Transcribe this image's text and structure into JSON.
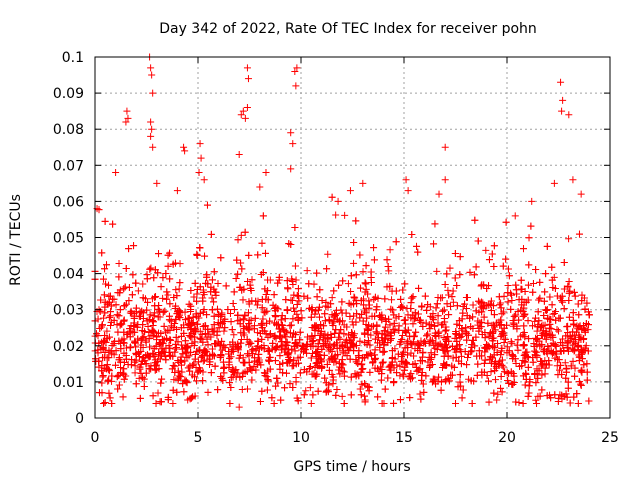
{
  "chart_data": {
    "type": "scatter",
    "title": "Day 342 of 2022, Rate Of TEC Index for receiver pohn",
    "xlabel": "GPS time / hours",
    "ylabel": "ROTI / TECUs",
    "xlim": [
      0,
      25
    ],
    "ylim": [
      0,
      0.1
    ],
    "x_ticks": [
      "0",
      "5",
      "10",
      "15",
      "20",
      "25"
    ],
    "y_ticks": [
      "0",
      "0.01",
      "0.02",
      "0.03",
      "0.04",
      "0.05",
      "0.06",
      "0.07",
      "0.08",
      "0.09",
      "0.1"
    ],
    "x_tick_values": [
      0,
      5,
      10,
      15,
      20,
      25
    ],
    "y_tick_values": [
      0,
      0.01,
      0.02,
      0.03,
      0.04,
      0.05,
      0.06,
      0.07,
      0.08,
      0.09,
      0.1
    ],
    "grid": true,
    "marker": "+",
    "color": "#ff0000",
    "series": [
      {
        "x_range": [
          0,
          24
        ],
        "y_typical_range": [
          0.005,
          0.04
        ],
        "y_median": 0.02,
        "outliers": [
          [
            2.65,
            0.1
          ],
          [
            2.7,
            0.097
          ],
          [
            2.75,
            0.095
          ],
          [
            2.8,
            0.09
          ],
          [
            2.7,
            0.082
          ],
          [
            2.75,
            0.08
          ],
          [
            2.7,
            0.078
          ],
          [
            2.8,
            0.075
          ],
          [
            1.55,
            0.085
          ],
          [
            1.6,
            0.083
          ],
          [
            1.5,
            0.082
          ],
          [
            4.3,
            0.075
          ],
          [
            4.35,
            0.074
          ],
          [
            5.1,
            0.076
          ],
          [
            5.15,
            0.072
          ],
          [
            5.05,
            0.068
          ],
          [
            7.1,
            0.084
          ],
          [
            7.2,
            0.085
          ],
          [
            7.4,
            0.086
          ],
          [
            7.3,
            0.083
          ],
          [
            7.0,
            0.073
          ],
          [
            7.4,
            0.097
          ],
          [
            7.45,
            0.094
          ],
          [
            9.7,
            0.096
          ],
          [
            9.8,
            0.097
          ],
          [
            9.75,
            0.092
          ],
          [
            9.5,
            0.079
          ],
          [
            9.6,
            0.076
          ],
          [
            9.5,
            0.069
          ],
          [
            17.0,
            0.075
          ],
          [
            17.0,
            0.066
          ],
          [
            22.6,
            0.093
          ],
          [
            22.7,
            0.088
          ],
          [
            22.65,
            0.085
          ],
          [
            23.0,
            0.084
          ],
          [
            0.1,
            0.058
          ],
          [
            1.0,
            0.068
          ],
          [
            3.0,
            0.065
          ],
          [
            4.0,
            0.063
          ],
          [
            5.3,
            0.066
          ],
          [
            8.0,
            0.064
          ],
          [
            8.3,
            0.068
          ],
          [
            11.8,
            0.06
          ],
          [
            12.4,
            0.063
          ],
          [
            13.0,
            0.065
          ],
          [
            15.1,
            0.066
          ],
          [
            15.2,
            0.063
          ],
          [
            16.7,
            0.062
          ],
          [
            20.4,
            0.056
          ],
          [
            21.2,
            0.06
          ],
          [
            22.3,
            0.065
          ],
          [
            23.2,
            0.066
          ],
          [
            23.6,
            0.062
          ],
          [
            17.5,
            0.004
          ],
          [
            19.5,
            0.005
          ],
          [
            7.0,
            0.003
          ],
          [
            4.5,
            0.005
          ],
          [
            10.5,
            0.004
          ],
          [
            12.0,
            0.006
          ],
          [
            21.5,
            0.006
          ]
        ]
      }
    ]
  }
}
